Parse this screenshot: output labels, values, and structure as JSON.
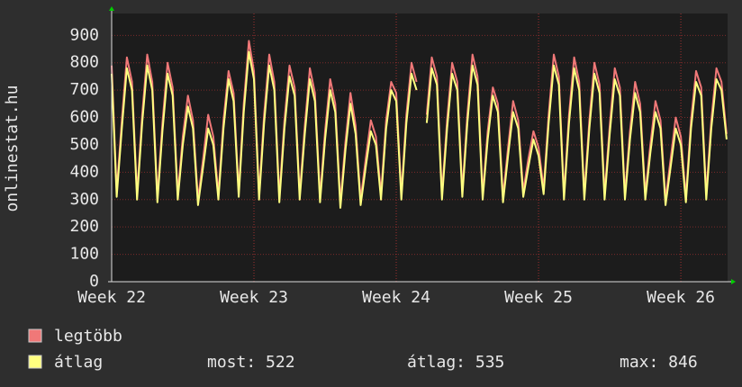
{
  "chart_data": {
    "type": "line",
    "y_axis_label": "onlinestat.hu",
    "x": [
      0,
      0.25,
      0.5,
      0.75,
      1,
      1.25,
      1.5,
      1.75,
      2,
      2.25,
      2.5,
      2.75,
      3,
      3.25,
      3.5,
      3.75,
      4,
      4.25,
      4.5,
      4.75,
      5,
      5.25,
      5.5,
      5.75,
      6,
      6.25,
      6.5,
      6.75,
      7,
      7.25,
      7.5,
      7.75,
      8,
      8.25,
      8.5,
      8.75,
      9,
      9.25,
      9.5,
      9.75,
      10,
      10.25,
      10.5,
      10.75,
      11,
      11.25,
      11.5,
      11.75,
      12,
      12.25,
      12.5,
      12.75,
      13,
      13.25,
      13.5,
      13.75,
      14,
      14.25,
      14.5,
      14.75,
      15,
      15.25,
      15.5,
      15.75,
      16,
      16.25,
      16.5,
      16.75,
      17,
      17.25,
      17.5,
      17.75,
      18,
      18.25,
      18.5,
      18.75,
      19,
      19.25,
      19.5,
      19.75,
      20,
      20.25,
      20.5,
      20.75,
      21,
      21.25,
      21.5,
      21.75,
      22,
      22.25,
      22.5,
      22.75,
      23,
      23.25,
      23.5,
      23.75,
      24,
      24.25,
      24.5,
      24.75,
      25,
      25.25,
      25.5,
      25.75,
      26,
      26.25,
      26.5,
      26.75,
      27,
      27.25,
      27.5,
      27.75,
      28,
      28.25,
      28.5,
      28.75,
      29,
      29.25,
      29.5,
      29.75,
      30,
      30.25
    ],
    "series": [
      {
        "name": "legtöbb",
        "color": "#f07878",
        "values": [
          790,
          330,
          590,
          820,
          730,
          320,
          610,
          830,
          730,
          310,
          580,
          800,
          710,
          320,
          530,
          680,
          590,
          300,
          450,
          610,
          530,
          320,
          590,
          770,
          690,
          330,
          650,
          880,
          770,
          320,
          610,
          830,
          730,
          310,
          590,
          790,
          710,
          320,
          570,
          780,
          690,
          310,
          550,
          740,
          650,
          290,
          510,
          690,
          570,
          300,
          450,
          590,
          530,
          320,
          590,
          730,
          690,
          320,
          610,
          800,
          730,
          null,
          610,
          820,
          750,
          320,
          590,
          800,
          730,
          330,
          610,
          830,
          750,
          320,
          550,
          710,
          650,
          310,
          490,
          660,
          590,
          330,
          450,
          550,
          490,
          340,
          610,
          830,
          750,
          320,
          610,
          820,
          730,
          320,
          590,
          800,
          720,
          320,
          570,
          780,
          710,
          320,
          550,
          730,
          650,
          320,
          500,
          660,
          590,
          300,
          450,
          600,
          530,
          310,
          590,
          770,
          710,
          320,
          590,
          780,
          730,
          540
        ]
      },
      {
        "name": "átlag",
        "color": "#ffff80",
        "values": [
          760,
          310,
          560,
          780,
          700,
          300,
          580,
          790,
          700,
          290,
          550,
          760,
          680,
          300,
          500,
          640,
          560,
          280,
          420,
          560,
          500,
          300,
          560,
          740,
          660,
          310,
          620,
          840,
          740,
          300,
          580,
          790,
          700,
          290,
          560,
          750,
          680,
          300,
          540,
          740,
          660,
          290,
          520,
          700,
          620,
          270,
          480,
          650,
          540,
          280,
          420,
          550,
          500,
          300,
          560,
          700,
          660,
          300,
          580,
          760,
          700,
          null,
          580,
          780,
          720,
          300,
          560,
          760,
          700,
          310,
          580,
          790,
          720,
          300,
          520,
          680,
          620,
          290,
          460,
          620,
          560,
          310,
          420,
          520,
          460,
          320,
          580,
          790,
          720,
          300,
          580,
          780,
          700,
          300,
          560,
          760,
          690,
          300,
          540,
          740,
          680,
          300,
          520,
          690,
          620,
          300,
          470,
          620,
          560,
          280,
          420,
          560,
          500,
          290,
          560,
          730,
          680,
          300,
          560,
          740,
          700,
          520
        ]
      }
    ],
    "stats": [
      "most: 522",
      "átlag: 535",
      "max: 846"
    ],
    "xlim": [
      0,
      30.3
    ],
    "xticks": [
      {
        "value": 0,
        "label": "Week 22"
      },
      {
        "value": 7,
        "label": "Week 23"
      },
      {
        "value": 14,
        "label": "Week 24"
      },
      {
        "value": 21,
        "label": "Week 25"
      },
      {
        "value": 28,
        "label": "Week 26"
      }
    ],
    "ylim": [
      0,
      980
    ],
    "yticks": [
      0,
      100,
      200,
      300,
      400,
      500,
      600,
      700,
      800,
      900
    ],
    "grid": true
  }
}
